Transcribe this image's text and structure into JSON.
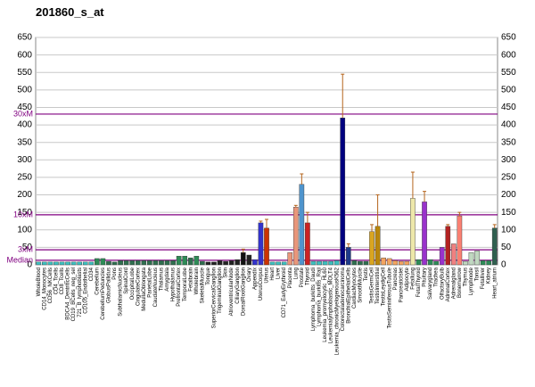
{
  "chart_data": {
    "type": "bar",
    "title": "201860_s_at",
    "categories": [
      "WholeBlood",
      "CD14_Monocytes",
      "CD56_NKCells",
      "CD4_Tcells",
      "CD8_Tcells",
      "BDCA4_DentriticCells",
      "CD19_BCells_neg_sel",
      "721_B_lymphoblasts",
      "CD105_Endothelial",
      "CD34",
      "Cerebellum",
      "CerebellumPeduncles",
      "GlobusPallidus",
      "Pons",
      "SubthalamicNucleus",
      "SpinalCord",
      "OccipitalLobe",
      "CingulateCortex",
      "MedullaOblongata",
      "ParietalLobe",
      "CaudateNucleus",
      "Thalamus",
      "Amygdala",
      "Hypothalamus",
      "PrefrontalCortex",
      "TemporalLobe",
      "Fetalbrain",
      "Wholebrain",
      "SkeletalMuscle",
      "Tongue",
      "SuperiorCervicalGanglion",
      "TrigeminalGanglion",
      "Skin",
      "AtrioventricularNode",
      "CiliaryGanglion",
      "DorsalRootGanglion",
      "Ovary",
      "Appendix",
      "UterusCorpus",
      "Uterus",
      "Heart",
      "Liver",
      "CD71_EarlyErythroid",
      "Placenta",
      "Lung",
      "Prostate",
      "Thyroid",
      "Lymphoma_burkitts_Daudi",
      "Lymphoma_burkitts_Raji",
      "Leukemia_promyelocytic_HL60",
      "Leukemialymphoblastic_MOLT4",
      "Leukemia_chronicMyelogenousK562",
      "Colorectaladenocarcinoma",
      "BronchialEpithelialCells",
      "CardiacMyocytes",
      "SmoothMuscle",
      "Testis",
      "TestisGermCell",
      "TestisInterstitial",
      "TestisLeydigCell",
      "TestisSeminiferousTubule",
      "Pancreas",
      "PancreaticIslet",
      "Adipocyte",
      "Fetallung",
      "FetalThyroid",
      "Pituitary",
      "Salivarygland",
      "Trachea",
      "OlfactoryBulb",
      "AdrenalCortex",
      "Adrenalgland",
      "Bonemarrow",
      "Thymus",
      "Lymphnode",
      "Tonsil",
      "Fetalliver",
      "Kidney",
      "Heart_atrium"
    ],
    "values": [
      8,
      8,
      8,
      8,
      8,
      8,
      8,
      8,
      8,
      8,
      18,
      18,
      10,
      8,
      12,
      12,
      12,
      12,
      12,
      12,
      12,
      12,
      12,
      12,
      25,
      25,
      20,
      25,
      10,
      8,
      8,
      12,
      10,
      12,
      15,
      35,
      28,
      15,
      120,
      105,
      8,
      8,
      8,
      35,
      165,
      230,
      120,
      10,
      10,
      10,
      10,
      12,
      420,
      50,
      12,
      10,
      10,
      95,
      110,
      20,
      18,
      12,
      10,
      10,
      190,
      15,
      180,
      15,
      10,
      50,
      110,
      60,
      140,
      10,
      35,
      40,
      12,
      12,
      105
    ],
    "errors": [
      null,
      null,
      null,
      null,
      null,
      null,
      null,
      null,
      null,
      null,
      null,
      null,
      null,
      null,
      null,
      null,
      null,
      null,
      null,
      null,
      null,
      null,
      null,
      null,
      null,
      null,
      null,
      null,
      null,
      null,
      null,
      null,
      null,
      null,
      null,
      10,
      null,
      null,
      5,
      25,
      null,
      null,
      null,
      null,
      5,
      30,
      30,
      null,
      null,
      null,
      null,
      null,
      125,
      10,
      null,
      null,
      null,
      20,
      90,
      null,
      null,
      null,
      null,
      null,
      75,
      null,
      30,
      null,
      null,
      null,
      5,
      null,
      10,
      null,
      null,
      null,
      null,
      null,
      10
    ],
    "colors": [
      "#3cc0c0",
      "#3cc0c0",
      "#3cc0c0",
      "#3cc0c0",
      "#3cc0c0",
      "#3cc0c0",
      "#3cc0c0",
      "#3cc0c0",
      "#3cc0c0",
      "#3cc0c0",
      "#2e8b57",
      "#2e8b57",
      "#2f6f4f",
      "#2f6f4f",
      "#2f6f4f",
      "#2f6f4f",
      "#2f6f4f",
      "#2f6f4f",
      "#2f6f4f",
      "#2f6f4f",
      "#2f6f4f",
      "#2f6f4f",
      "#2f6f4f",
      "#2f6f4f",
      "#2e8b57",
      "#2e8b57",
      "#2f6f4f",
      "#2e8b57",
      "#2f6f4f",
      "#222222",
      "#222222",
      "#222222",
      "#222222",
      "#222222",
      "#222222",
      "#111111",
      "#222222",
      "#3333cc",
      "#3333cc",
      "#cc3300",
      "#3cc0c0",
      "#3cc0c0",
      "#3cc0c0",
      "#e9967a",
      "#e9967a",
      "#4f94cd",
      "#cc2222",
      "#3cc0c0",
      "#3cc0c0",
      "#3cc0c0",
      "#3cc0c0",
      "#3cc0c0",
      "#000080",
      "#1e3a8a",
      "#2f6f4f",
      "#2f6f4f",
      "#2f6f4f",
      "#daa520",
      "#b8860b",
      "#f4a460",
      "#f4a460",
      "#f4a460",
      "#f4a460",
      "#f4a460",
      "#eee8aa",
      "#2e8b57",
      "#9932cc",
      "#2e8b57",
      "#2e8b57",
      "#9932cc",
      "#b22222",
      "#f08080",
      "#fa8072",
      "#c0d8c0",
      "#c0d8c0",
      "#c0d8c0",
      "#2e8b57",
      "#2e8b57",
      "#2f5f4f"
    ],
    "ylim": [
      0,
      650
    ],
    "yticks": [
      0,
      50,
      100,
      150,
      200,
      250,
      300,
      350,
      400,
      450,
      500,
      550,
      600,
      650
    ],
    "grid": true,
    "reference_lines": [
      {
        "label": "30xM",
        "value": 431
      },
      {
        "label": "10xM",
        "value": 143
      },
      {
        "label": "3xM",
        "value": 43
      },
      {
        "label": "Median",
        "value": 13
      }
    ],
    "reference_color": "#800080"
  }
}
